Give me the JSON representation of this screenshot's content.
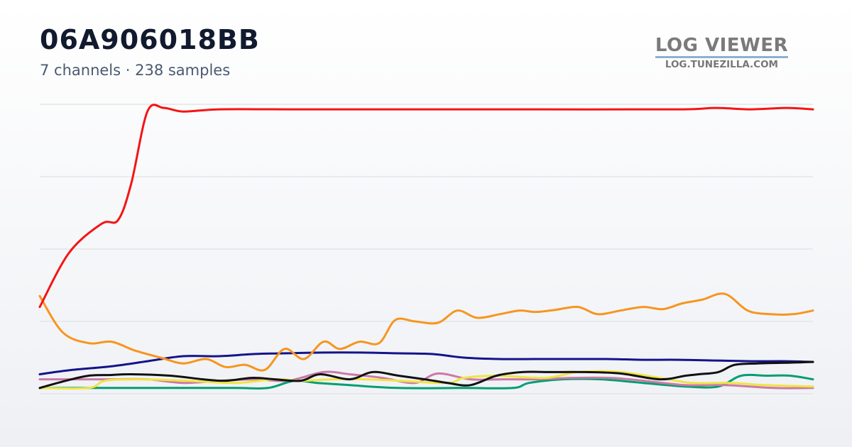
{
  "header": {
    "title": "06A906018BB",
    "subtitle": "7 channels · 238 samples"
  },
  "brand": {
    "name": "LOG VIEWER",
    "url": "LOG.TUNEZILLA.COM"
  },
  "chart_data": {
    "type": "line",
    "grid": true,
    "ylim": [
      0,
      4
    ],
    "xlim": [
      0,
      237
    ],
    "yticks": [
      0,
      1,
      2,
      3,
      4
    ],
    "series": [
      {
        "color": "#f51414",
        "x": [
          0,
          9,
          19,
          24,
          28,
          33,
          38,
          44,
          55,
          76,
          109,
          152,
          196,
          207,
          218,
          229,
          237
        ],
        "y": [
          1.2,
          1.95,
          2.35,
          2.4,
          2.9,
          3.9,
          3.95,
          3.9,
          3.93,
          3.93,
          3.93,
          3.93,
          3.93,
          3.95,
          3.93,
          3.95,
          3.93
        ]
      },
      {
        "color": "#f7951e",
        "x": [
          0,
          7,
          15,
          22,
          29,
          37,
          44,
          51,
          57,
          63,
          69,
          75,
          81,
          87,
          92,
          98,
          104,
          109,
          115,
          122,
          128,
          134,
          141,
          147,
          152,
          158,
          165,
          171,
          178,
          185,
          191,
          197,
          203,
          210,
          217,
          224,
          231,
          237
        ],
        "y": [
          1.35,
          0.85,
          0.7,
          0.72,
          0.6,
          0.5,
          0.42,
          0.48,
          0.37,
          0.4,
          0.33,
          0.62,
          0.48,
          0.72,
          0.62,
          0.72,
          0.7,
          1.02,
          1.0,
          0.98,
          1.15,
          1.05,
          1.1,
          1.15,
          1.13,
          1.16,
          1.2,
          1.1,
          1.15,
          1.2,
          1.17,
          1.25,
          1.3,
          1.38,
          1.15,
          1.1,
          1.1,
          1.15
        ]
      },
      {
        "color": "#14148a",
        "x": [
          0,
          10,
          22,
          33,
          44,
          55,
          66,
          76,
          87,
          98,
          109,
          120,
          130,
          141,
          152,
          163,
          174,
          185,
          196,
          207,
          218,
          229,
          237
        ],
        "y": [
          0.27,
          0.33,
          0.38,
          0.45,
          0.52,
          0.52,
          0.55,
          0.56,
          0.57,
          0.57,
          0.56,
          0.55,
          0.5,
          0.48,
          0.48,
          0.48,
          0.48,
          0.47,
          0.47,
          0.46,
          0.45,
          0.45,
          0.44
        ]
      },
      {
        "color": "#f0e442",
        "x": [
          0,
          15,
          20,
          30,
          45,
          60,
          72,
          80,
          90,
          100,
          110,
          125,
          130,
          140,
          155,
          165,
          178,
          190,
          200,
          212,
          222,
          237
        ],
        "y": [
          0.08,
          0.08,
          0.18,
          0.2,
          0.18,
          0.15,
          0.2,
          0.18,
          0.2,
          0.2,
          0.18,
          0.15,
          0.22,
          0.25,
          0.22,
          0.3,
          0.3,
          0.22,
          0.15,
          0.15,
          0.12,
          0.1
        ]
      },
      {
        "color": "#cc79a7",
        "x": [
          0,
          10,
          22,
          33,
          44,
          55,
          66,
          76,
          87,
          95,
          105,
          115,
          122,
          132,
          142,
          152,
          163,
          175,
          185,
          198,
          210,
          225,
          237
        ],
        "y": [
          0.2,
          0.2,
          0.2,
          0.2,
          0.15,
          0.18,
          0.2,
          0.18,
          0.3,
          0.27,
          0.22,
          0.15,
          0.28,
          0.2,
          0.2,
          0.2,
          0.22,
          0.22,
          0.18,
          0.12,
          0.12,
          0.08,
          0.08
        ]
      },
      {
        "color": "#009e73",
        "x": [
          0,
          20,
          40,
          60,
          70,
          78,
          85,
          95,
          110,
          130,
          145,
          150,
          160,
          172,
          185,
          198,
          208,
          215,
          223,
          230,
          237
        ],
        "y": [
          0.08,
          0.08,
          0.08,
          0.08,
          0.08,
          0.18,
          0.15,
          0.12,
          0.08,
          0.08,
          0.08,
          0.15,
          0.2,
          0.2,
          0.15,
          0.1,
          0.1,
          0.25,
          0.25,
          0.25,
          0.2
        ]
      },
      {
        "color": "#111111",
        "x": [
          0,
          8,
          15,
          22,
          28,
          40,
          50,
          57,
          65,
          72,
          80,
          86,
          95,
          102,
          110,
          118,
          125,
          132,
          140,
          148,
          157,
          167,
          178,
          190,
          198,
          202,
          208,
          213,
          220,
          230,
          237
        ],
        "y": [
          0.08,
          0.18,
          0.25,
          0.26,
          0.27,
          0.25,
          0.2,
          0.18,
          0.22,
          0.2,
          0.18,
          0.27,
          0.2,
          0.3,
          0.25,
          0.2,
          0.15,
          0.12,
          0.25,
          0.3,
          0.3,
          0.3,
          0.28,
          0.2,
          0.25,
          0.27,
          0.3,
          0.4,
          0.42,
          0.43,
          0.44
        ]
      }
    ]
  }
}
